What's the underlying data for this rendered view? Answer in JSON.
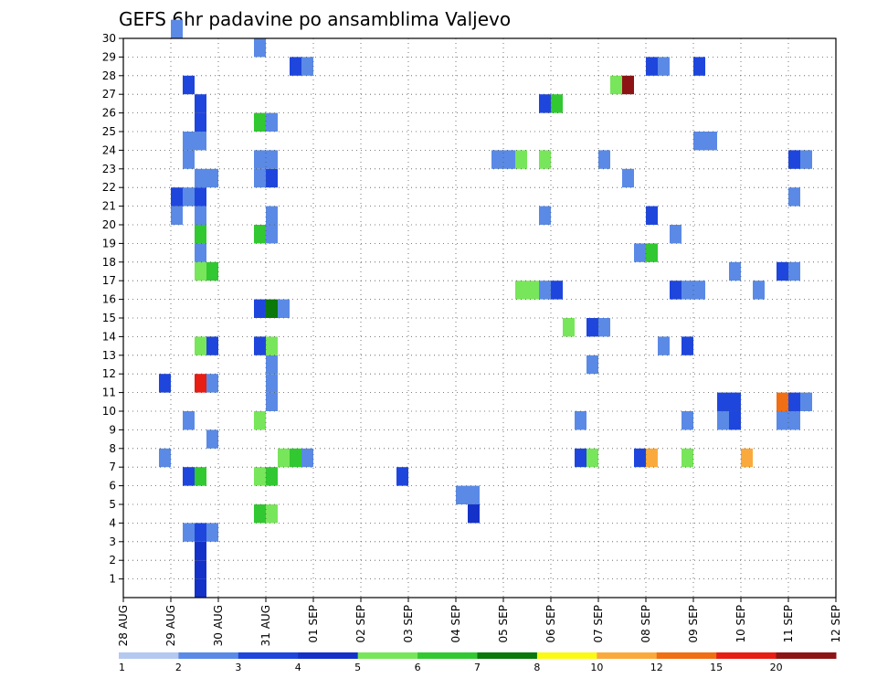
{
  "chart_data": {
    "type": "heatmap",
    "title": "GEFS 6hr padavine po ansamblima Valjevo",
    "x_ticks": [
      "28 AUG",
      "29 AUG",
      "30 AUG",
      "31 AUG",
      "01 SEP",
      "02 SEP",
      "03 SEP",
      "04 SEP",
      "05 SEP",
      "06 SEP",
      "07 SEP",
      "08 SEP",
      "09 SEP",
      "10 SEP",
      "11 SEP",
      "12 SEP"
    ],
    "y_ticks": [
      1,
      2,
      3,
      4,
      5,
      6,
      7,
      8,
      9,
      10,
      11,
      12,
      13,
      14,
      15,
      16,
      17,
      18,
      19,
      20,
      21,
      22,
      23,
      24,
      25,
      26,
      27,
      28,
      29,
      30
    ],
    "xlim_steps": [
      0,
      60
    ],
    "ylim": [
      0,
      30
    ],
    "grid": true,
    "colorbar": {
      "labels": [
        "1",
        "2",
        "3",
        "4",
        "5",
        "6",
        "7",
        "8",
        "10",
        "12",
        "15",
        "20"
      ],
      "colors": [
        "#b4c8f0",
        "#5a8ae6",
        "#1e46dc",
        "#1432c8",
        "#78e65a",
        "#32c832",
        "#0a780a",
        "#fafa14",
        "#faaa3c",
        "#f06e14",
        "#e61e14",
        "#8c1414"
      ]
    },
    "cells": [
      [
        4,
        30,
        1
      ],
      [
        6,
        0,
        3
      ],
      [
        6,
        1,
        3
      ],
      [
        6,
        2,
        3
      ],
      [
        6,
        3,
        2
      ],
      [
        5,
        3,
        1
      ],
      [
        7,
        3,
        1
      ],
      [
        11,
        4,
        5
      ],
      [
        12,
        4,
        4
      ],
      [
        29,
        4,
        3
      ],
      [
        29,
        5,
        1
      ],
      [
        23,
        6,
        2
      ],
      [
        28,
        5,
        1
      ],
      [
        5,
        6,
        2
      ],
      [
        6,
        6,
        5
      ],
      [
        11,
        6,
        4
      ],
      [
        12,
        6,
        5
      ],
      [
        3,
        7,
        1
      ],
      [
        13,
        7,
        4
      ],
      [
        14,
        7,
        5
      ],
      [
        15,
        7,
        1
      ],
      [
        38,
        7,
        2
      ],
      [
        39,
        7,
        4
      ],
      [
        43,
        7,
        2
      ],
      [
        44,
        7,
        8
      ],
      [
        47,
        7,
        4
      ],
      [
        52,
        7,
        8
      ],
      [
        7,
        8,
        1
      ],
      [
        5,
        9,
        1
      ],
      [
        11,
        9,
        4
      ],
      [
        38,
        9,
        1
      ],
      [
        47,
        9,
        1
      ],
      [
        50,
        9,
        1
      ],
      [
        51,
        9,
        2
      ],
      [
        55,
        9,
        1
      ],
      [
        56,
        9,
        1
      ],
      [
        12,
        10,
        1
      ],
      [
        50,
        10,
        2
      ],
      [
        51,
        10,
        2
      ],
      [
        55,
        10,
        9
      ],
      [
        56,
        10,
        2
      ],
      [
        57,
        10,
        1
      ],
      [
        3,
        11,
        2
      ],
      [
        6,
        11,
        10
      ],
      [
        7,
        11,
        1
      ],
      [
        12,
        11,
        1
      ],
      [
        12,
        12,
        1
      ],
      [
        39,
        12,
        1
      ],
      [
        60,
        12,
        2
      ],
      [
        6,
        13,
        4
      ],
      [
        7,
        13,
        2
      ],
      [
        11,
        13,
        2
      ],
      [
        12,
        13,
        4
      ],
      [
        45,
        13,
        1
      ],
      [
        47,
        13,
        2
      ],
      [
        37,
        14,
        4
      ],
      [
        39,
        14,
        2
      ],
      [
        40,
        14,
        1
      ],
      [
        11,
        15,
        2
      ],
      [
        12,
        15,
        6
      ],
      [
        13,
        15,
        1
      ],
      [
        33,
        16,
        4
      ],
      [
        34,
        16,
        4
      ],
      [
        35,
        16,
        1
      ],
      [
        36,
        16,
        2
      ],
      [
        46,
        16,
        2
      ],
      [
        47,
        16,
        1
      ],
      [
        48,
        16,
        1
      ],
      [
        53,
        16,
        1
      ],
      [
        6,
        17,
        4
      ],
      [
        7,
        17,
        5
      ],
      [
        55,
        17,
        2
      ],
      [
        56,
        17,
        1
      ],
      [
        51,
        17,
        1
      ],
      [
        6,
        18,
        1
      ],
      [
        43,
        18,
        1
      ],
      [
        44,
        18,
        5
      ],
      [
        46,
        19,
        1
      ],
      [
        6,
        19,
        5
      ],
      [
        11,
        19,
        5
      ],
      [
        12,
        19,
        1
      ],
      [
        4,
        20,
        1
      ],
      [
        6,
        20,
        1
      ],
      [
        12,
        20,
        1
      ],
      [
        35,
        20,
        1
      ],
      [
        44,
        20,
        2
      ],
      [
        4,
        21,
        2
      ],
      [
        5,
        21,
        1
      ],
      [
        6,
        21,
        2
      ],
      [
        56,
        21,
        1
      ],
      [
        60,
        21,
        2
      ],
      [
        6,
        22,
        1
      ],
      [
        7,
        22,
        1
      ],
      [
        11,
        22,
        1
      ],
      [
        12,
        22,
        2
      ],
      [
        42,
        22,
        1
      ],
      [
        5,
        23,
        1
      ],
      [
        11,
        23,
        1
      ],
      [
        12,
        23,
        1
      ],
      [
        31,
        23,
        1
      ],
      [
        32,
        23,
        1
      ],
      [
        33,
        23,
        4
      ],
      [
        35,
        23,
        4
      ],
      [
        40,
        23,
        1
      ],
      [
        56,
        23,
        2
      ],
      [
        57,
        23,
        1
      ],
      [
        5,
        24,
        1
      ],
      [
        6,
        24,
        1
      ],
      [
        48,
        24,
        1
      ],
      [
        49,
        24,
        1
      ],
      [
        6,
        25,
        2
      ],
      [
        11,
        25,
        5
      ],
      [
        12,
        25,
        1
      ],
      [
        6,
        26,
        2
      ],
      [
        35,
        26,
        2
      ],
      [
        36,
        26,
        5
      ],
      [
        5,
        27,
        2
      ],
      [
        41,
        27,
        4
      ],
      [
        42,
        27,
        11
      ],
      [
        14,
        28,
        2
      ],
      [
        15,
        28,
        1
      ],
      [
        44,
        28,
        2
      ],
      [
        45,
        28,
        1
      ],
      [
        48,
        28,
        2
      ],
      [
        11,
        29,
        1
      ]
    ]
  }
}
